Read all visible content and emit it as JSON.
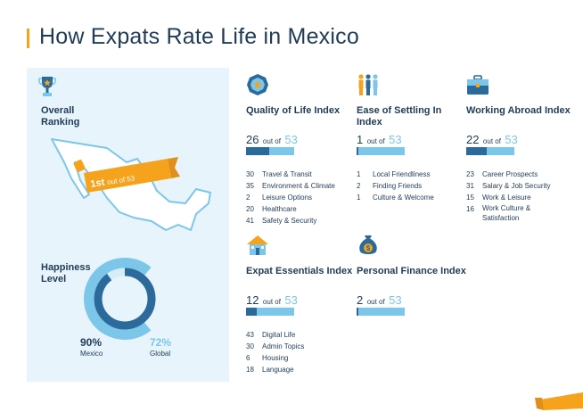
{
  "title": "How Expats Rate Life in Mexico",
  "overall": {
    "label": "Overall Ranking",
    "rank": "1st",
    "out_of": "out of 53"
  },
  "happiness": {
    "label": "Happiness Level",
    "mexico_pct": "90%",
    "mexico_label": "Mexico",
    "global_pct": "72%",
    "global_label": "Global",
    "mexico_value": 0.9,
    "global_value": 0.72
  },
  "cards": {
    "quality": {
      "title": "Quality of Life Index",
      "rank": "26",
      "out_of": "out of",
      "total": "53",
      "fraction": 0.49,
      "items": [
        {
          "n": "30",
          "label": "Travel & Transit"
        },
        {
          "n": "35",
          "label": "Environment & Climate"
        },
        {
          "n": "2",
          "label": "Leisure Options"
        },
        {
          "n": "20",
          "label": "Healthcare"
        },
        {
          "n": "41",
          "label": "Safety & Security"
        }
      ]
    },
    "settling": {
      "title": "Ease of Settling In Index",
      "rank": "1",
      "out_of": "out of",
      "total": "53",
      "fraction": 0.02,
      "items": [
        {
          "n": "1",
          "label": "Local Friendliness"
        },
        {
          "n": "2",
          "label": "Finding Friends"
        },
        {
          "n": "1",
          "label": "Culture & Welcome"
        }
      ]
    },
    "working": {
      "title": "Working Abroad Index",
      "rank": "22",
      "out_of": "out of",
      "total": "53",
      "fraction": 0.42,
      "items": [
        {
          "n": "23",
          "label": "Career Prospects"
        },
        {
          "n": "31",
          "label": "Salary & Job Security"
        },
        {
          "n": "15",
          "label": "Work & Leisure"
        },
        {
          "n": "16",
          "label": "Work Culture & Satisfaction"
        }
      ]
    },
    "essentials": {
      "title": "Expat Essentials Index",
      "rank": "12",
      "out_of": "out of",
      "total": "53",
      "fraction": 0.23,
      "items": [
        {
          "n": "43",
          "label": "Digital Life"
        },
        {
          "n": "30",
          "label": "Admin Topics"
        },
        {
          "n": "6",
          "label": "Housing"
        },
        {
          "n": "18",
          "label": "Language"
        }
      ]
    },
    "finance": {
      "title": "Personal Finance Index",
      "rank": "2",
      "out_of": "out of",
      "total": "53",
      "fraction": 0.04,
      "items": []
    }
  },
  "colors": {
    "navy": "#1f3b57",
    "dark_blue": "#2b6a9a",
    "light_blue": "#7cc6ea",
    "orange": "#f5a21c",
    "panel": "#e8f4fb"
  },
  "icons": {
    "overall": "trophy-icon",
    "quality": "badge-icon",
    "settling": "people-icon",
    "working": "briefcase-icon",
    "essentials": "house-icon",
    "finance": "money-bag-icon"
  }
}
